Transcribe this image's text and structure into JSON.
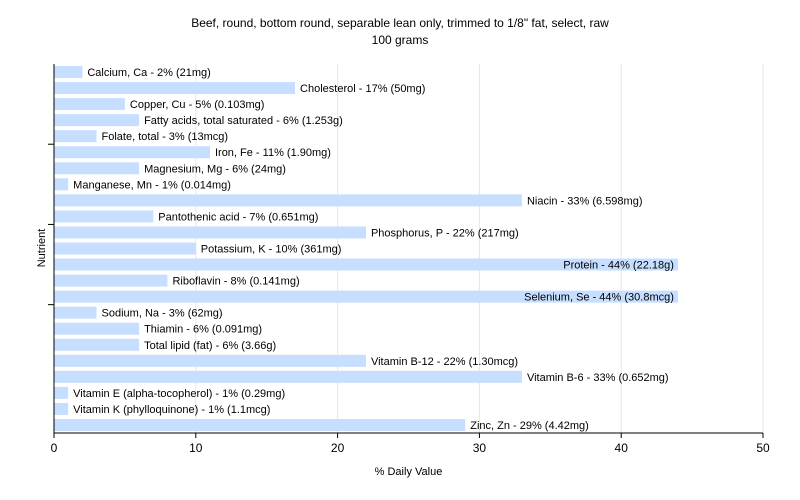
{
  "chart_data": {
    "type": "bar",
    "orientation": "horizontal",
    "title": "Beef, round, bottom round, separable lean only, trimmed to 1/8\" fat, select, raw",
    "subtitle": "100 grams",
    "xlabel": "% Daily Value",
    "ylabel": "Nutrient",
    "xlim": [
      0,
      50
    ],
    "xticks": [
      0,
      10,
      20,
      30,
      40,
      50
    ],
    "grid": true,
    "bar_color": "#c6deff",
    "categories": [
      "Calcium, Ca",
      "Cholesterol",
      "Copper, Cu",
      "Fatty acids, total saturated",
      "Folate, total",
      "Iron, Fe",
      "Magnesium, Mg",
      "Manganese, Mn",
      "Niacin",
      "Pantothenic acid",
      "Phosphorus, P",
      "Potassium, K",
      "Protein",
      "Riboflavin",
      "Selenium, Se",
      "Sodium, Na",
      "Thiamin",
      "Total lipid (fat)",
      "Vitamin B-12",
      "Vitamin B-6",
      "Vitamin E (alpha-tocopherol)",
      "Vitamin K (phylloquinone)",
      "Zinc, Zn"
    ],
    "values": [
      2,
      17,
      5,
      6,
      3,
      11,
      6,
      1,
      33,
      7,
      22,
      10,
      44,
      8,
      44,
      3,
      6,
      6,
      22,
      33,
      1,
      1,
      29
    ],
    "labels": [
      "Calcium, Ca - 2% (21mg)",
      "Cholesterol - 17% (50mg)",
      "Copper, Cu - 5% (0.103mg)",
      "Fatty acids, total saturated - 6% (1.253g)",
      "Folate, total - 3% (13mcg)",
      "Iron, Fe - 11% (1.90mg)",
      "Magnesium, Mg - 6% (24mg)",
      "Manganese, Mn - 1% (0.014mg)",
      "Niacin - 33% (6.598mg)",
      "Pantothenic acid - 7% (0.651mg)",
      "Phosphorus, P - 22% (217mg)",
      "Potassium, K - 10% (361mg)",
      "Protein - 44% (22.18g)",
      "Riboflavin - 8% (0.141mg)",
      "Selenium, Se - 44% (30.8mcg)",
      "Sodium, Na - 3% (62mg)",
      "Thiamin - 6% (0.091mg)",
      "Total lipid (fat) - 6% (3.66g)",
      "Vitamin B-12 - 22% (1.30mcg)",
      "Vitamin B-6 - 33% (0.652mg)",
      "Vitamin E (alpha-tocopherol) - 1% (0.29mg)",
      "Vitamin K (phylloquinone) - 1% (1.1mcg)",
      "Zinc, Zn - 29% (4.42mg)"
    ]
  }
}
